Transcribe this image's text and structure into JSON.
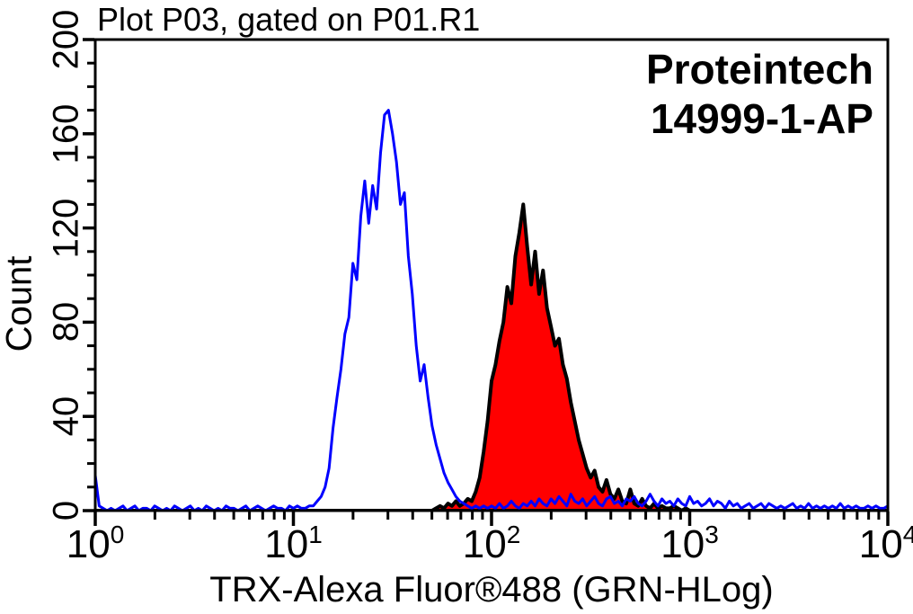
{
  "title": "Plot P03, gated on P01.R1",
  "watermark": {
    "line1": "Proteintech",
    "line2": "14999-1-AP"
  },
  "chart_data": {
    "type": "area",
    "subtype": "flow-cytometry-histogram-overlay",
    "title": "Plot P03, gated on P01.R1",
    "xlabel": "TRX-Alexa Fluor®488 (GRN-HLog)",
    "ylabel": "Count",
    "annotations": [
      "Proteintech",
      "14999-1-AP"
    ],
    "x_scale": "log10",
    "x_log_min": 0,
    "x_log_max": 4,
    "x_tick_base": "10",
    "x_major_ticks": [
      0,
      1,
      2,
      3,
      4
    ],
    "y_min": 0,
    "y_max": 200,
    "y_major_ticks": [
      0,
      40,
      80,
      120,
      160,
      200
    ],
    "y_minor_step": 10,
    "grid": false,
    "legend": "none",
    "frame_color": "#000000",
    "series": [
      {
        "name": "red-filled-histogram",
        "style": "filled",
        "fill": "#ff0000",
        "stroke": "#000000",
        "stroke_width": 4,
        "peak": {
          "x": 150,
          "count": 130
        },
        "x_log_start": 0,
        "x_log_step": 0.02,
        "values": [
          0,
          0,
          0,
          0,
          0,
          0,
          0,
          0,
          0,
          0,
          0,
          0,
          0,
          0,
          0,
          0,
          0,
          0,
          0,
          0,
          0,
          0,
          0,
          0,
          0,
          0,
          0,
          0,
          0,
          0,
          0,
          0,
          0,
          0,
          0,
          0,
          0,
          0,
          0,
          0,
          0,
          0,
          0,
          0,
          0,
          0,
          0,
          0,
          0,
          0,
          0,
          0,
          0,
          0,
          0,
          0,
          0,
          0,
          0,
          0,
          0,
          0,
          0,
          0,
          0,
          0,
          0,
          0,
          0,
          0,
          0,
          0,
          0,
          0,
          0,
          0,
          0,
          0,
          0,
          0,
          0,
          0,
          0,
          0,
          0,
          0,
          1,
          2,
          1,
          3,
          2,
          4,
          2,
          3,
          5,
          4,
          8,
          14,
          25,
          38,
          55,
          62,
          72,
          80,
          95,
          88,
          108,
          118,
          130,
          112,
          96,
          110,
          92,
          102,
          86,
          78,
          70,
          73,
          62,
          56,
          46,
          38,
          30,
          24,
          18,
          14,
          17,
          10,
          8,
          13,
          7,
          5,
          9,
          4,
          3,
          9,
          3,
          2,
          5,
          2,
          1,
          3,
          1,
          2,
          1,
          1,
          2,
          1,
          0,
          1,
          0,
          0,
          0,
          0,
          0,
          0,
          0,
          0,
          0,
          0,
          0,
          0,
          0,
          0,
          0,
          0,
          0,
          0,
          0,
          0,
          0,
          0,
          0,
          0,
          0,
          0,
          0,
          0,
          0,
          0,
          0,
          0,
          0,
          0,
          0,
          0,
          0,
          0,
          0,
          0,
          0,
          0,
          0,
          0,
          0,
          0,
          0,
          0,
          0,
          0,
          0
        ]
      },
      {
        "name": "blue-open-histogram",
        "style": "line",
        "fill": "none",
        "stroke": "#0000ff",
        "stroke_width": 3,
        "peak": {
          "x": 31,
          "count": 170
        },
        "x_log_start": 0,
        "x_log_step": 0.02,
        "values": [
          15,
          2,
          1,
          0,
          1,
          0,
          1,
          2,
          0,
          1,
          2,
          0,
          1,
          1,
          0,
          2,
          1,
          0,
          1,
          0,
          2,
          1,
          0,
          1,
          2,
          0,
          1,
          0,
          2,
          1,
          0,
          1,
          0,
          2,
          1,
          1,
          0,
          1,
          2,
          0,
          1,
          2,
          1,
          0,
          1,
          2,
          1,
          1,
          0,
          2,
          1,
          2,
          1,
          1,
          2,
          2,
          4,
          6,
          10,
          18,
          35,
          48,
          60,
          75,
          82,
          105,
          98,
          125,
          140,
          122,
          138,
          128,
          152,
          168,
          170,
          160,
          148,
          130,
          135,
          108,
          92,
          70,
          55,
          62,
          48,
          36,
          28,
          22,
          16,
          12,
          9,
          6,
          4,
          3,
          2,
          1,
          2,
          1,
          2,
          1,
          2,
          1,
          3,
          1,
          2,
          4,
          2,
          1,
          3,
          2,
          4,
          2,
          5,
          3,
          2,
          5,
          3,
          6,
          4,
          2,
          7,
          4,
          3,
          5,
          2,
          4,
          6,
          3,
          2,
          5,
          6,
          3,
          4,
          2,
          5,
          4,
          6,
          3,
          2,
          4,
          7,
          4,
          2,
          5,
          3,
          4,
          2,
          5,
          3,
          2,
          6,
          3,
          4,
          2,
          3,
          5,
          2,
          4,
          3,
          1,
          4,
          2,
          3,
          1,
          2,
          3,
          1,
          2,
          3,
          1,
          3,
          2,
          1,
          2,
          1,
          2,
          3,
          1,
          2,
          1,
          3,
          1,
          2,
          1,
          2,
          1,
          2,
          1,
          3,
          1,
          2,
          1,
          2,
          1,
          1,
          2,
          1,
          2,
          1,
          1,
          2
        ]
      }
    ]
  }
}
